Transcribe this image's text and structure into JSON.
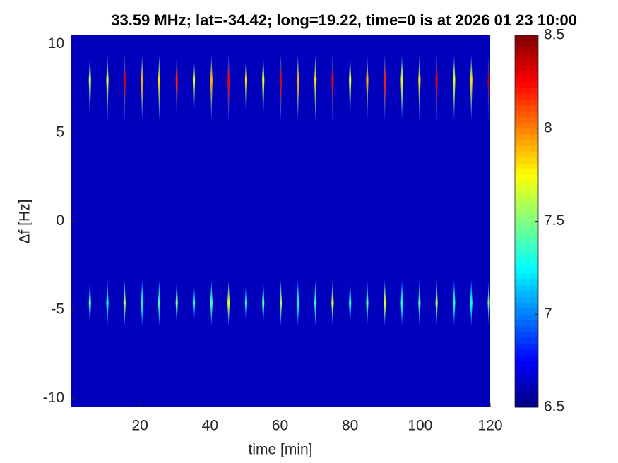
{
  "chart_data": {
    "type": "heatmap",
    "title": "33.59 MHz;  lat=-34.42; long=19.22, time=0 is at 2026 01 23 10:00",
    "xlabel": "time [min]",
    "ylabel": "Δf [Hz]",
    "xlim": [
      0.4,
      120
    ],
    "xticks": [
      20,
      40,
      60,
      80,
      100,
      120
    ],
    "ylim": [
      -10.5,
      10.5
    ],
    "yticks": [
      -10,
      -5,
      0,
      5,
      10
    ],
    "colormap": "jet",
    "clim": [
      6.5,
      8.5
    ],
    "cticks": [
      6.5,
      7,
      7.5,
      8,
      8.5
    ],
    "background": 6.62,
    "times": [
      5.7,
      10.7,
      15.6,
      20.6,
      25.5,
      30.5,
      35.4,
      40.4,
      45.3,
      50.3,
      55.2,
      60.2,
      65.1,
      70.1,
      75.0,
      80.0,
      84.9,
      89.9,
      94.8,
      99.8,
      104.7,
      109.7,
      114.6,
      119.6
    ],
    "bands": [
      {
        "center": 8,
        "extent": [
          5.6,
          9.4
        ],
        "peaks": [
          7.6,
          7.7,
          8.3,
          7.9,
          7.8,
          8.2,
          7.7,
          7.9,
          8.3,
          7.8,
          7.7,
          8.3,
          7.9,
          7.8,
          8.3,
          7.7,
          7.9,
          8.2,
          7.7,
          7.8,
          8.3,
          7.7,
          7.8,
          8.4
        ]
      },
      {
        "center": -4.6,
        "extent": [
          -5.9,
          -3.3
        ],
        "peaks": [
          7.4,
          7.3,
          7.6,
          7.3,
          7.4,
          7.5,
          7.3,
          7.4,
          7.7,
          7.3,
          7.4,
          7.6,
          7.3,
          7.4,
          7.7,
          7.3,
          7.4,
          7.7,
          7.3,
          7.4,
          7.6,
          7.3,
          7.3,
          7.5
        ]
      }
    ]
  }
}
